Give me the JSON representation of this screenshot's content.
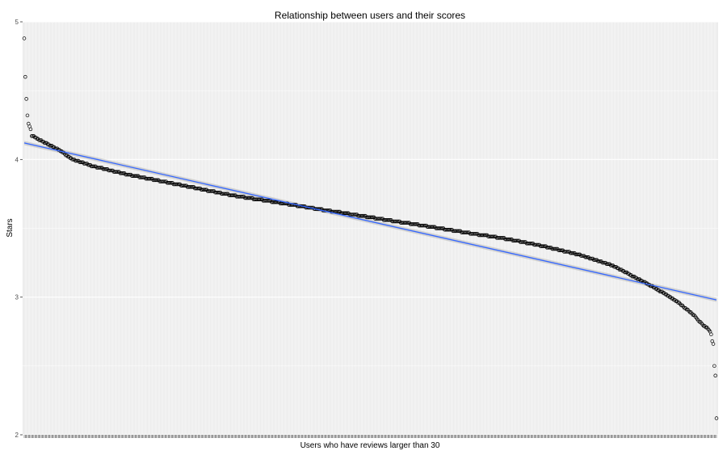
{
  "chart_data": {
    "type": "scatter",
    "title": "Relationship between users and their scores",
    "xlabel": "Users who have reviews larger than 30",
    "ylabel": "Stars",
    "ylim": [
      2,
      5
    ],
    "yticks": [
      2,
      3,
      4,
      5
    ],
    "x_tick_labels_visible": false,
    "n_points": 650,
    "grid": true,
    "panel_background": "#ebebeb",
    "point_color": "#000000",
    "point_shape": "open-circle",
    "fit_line": {
      "method": "linear",
      "confidence_band": true,
      "color": "#3366ff",
      "start": 4.12,
      "end": 2.98
    },
    "series": [
      {
        "sorted_descending": true,
        "head_values": [
          4.88,
          4.6,
          4.44,
          4.32,
          4.26,
          4.24,
          4.22,
          4.17
        ],
        "tail_values": [
          2.75,
          2.73,
          2.68,
          2.66,
          2.5,
          2.43,
          2.12
        ],
        "body_profile": [
          [
            0.012,
            4.17
          ],
          [
            0.05,
            4.07
          ],
          [
            0.07,
            4.0
          ],
          [
            0.1,
            3.95
          ],
          [
            0.15,
            3.89
          ],
          [
            0.2,
            3.84
          ],
          [
            0.25,
            3.79
          ],
          [
            0.3,
            3.74
          ],
          [
            0.35,
            3.7
          ],
          [
            0.4,
            3.66
          ],
          [
            0.45,
            3.62
          ],
          [
            0.5,
            3.58
          ],
          [
            0.55,
            3.54
          ],
          [
            0.6,
            3.5
          ],
          [
            0.65,
            3.46
          ],
          [
            0.7,
            3.42
          ],
          [
            0.75,
            3.37
          ],
          [
            0.8,
            3.31
          ],
          [
            0.85,
            3.23
          ],
          [
            0.88,
            3.15
          ],
          [
            0.91,
            3.07
          ],
          [
            0.94,
            2.98
          ],
          [
            0.965,
            2.88
          ],
          [
            0.98,
            2.8
          ],
          [
            0.99,
            2.76
          ]
        ]
      }
    ]
  }
}
